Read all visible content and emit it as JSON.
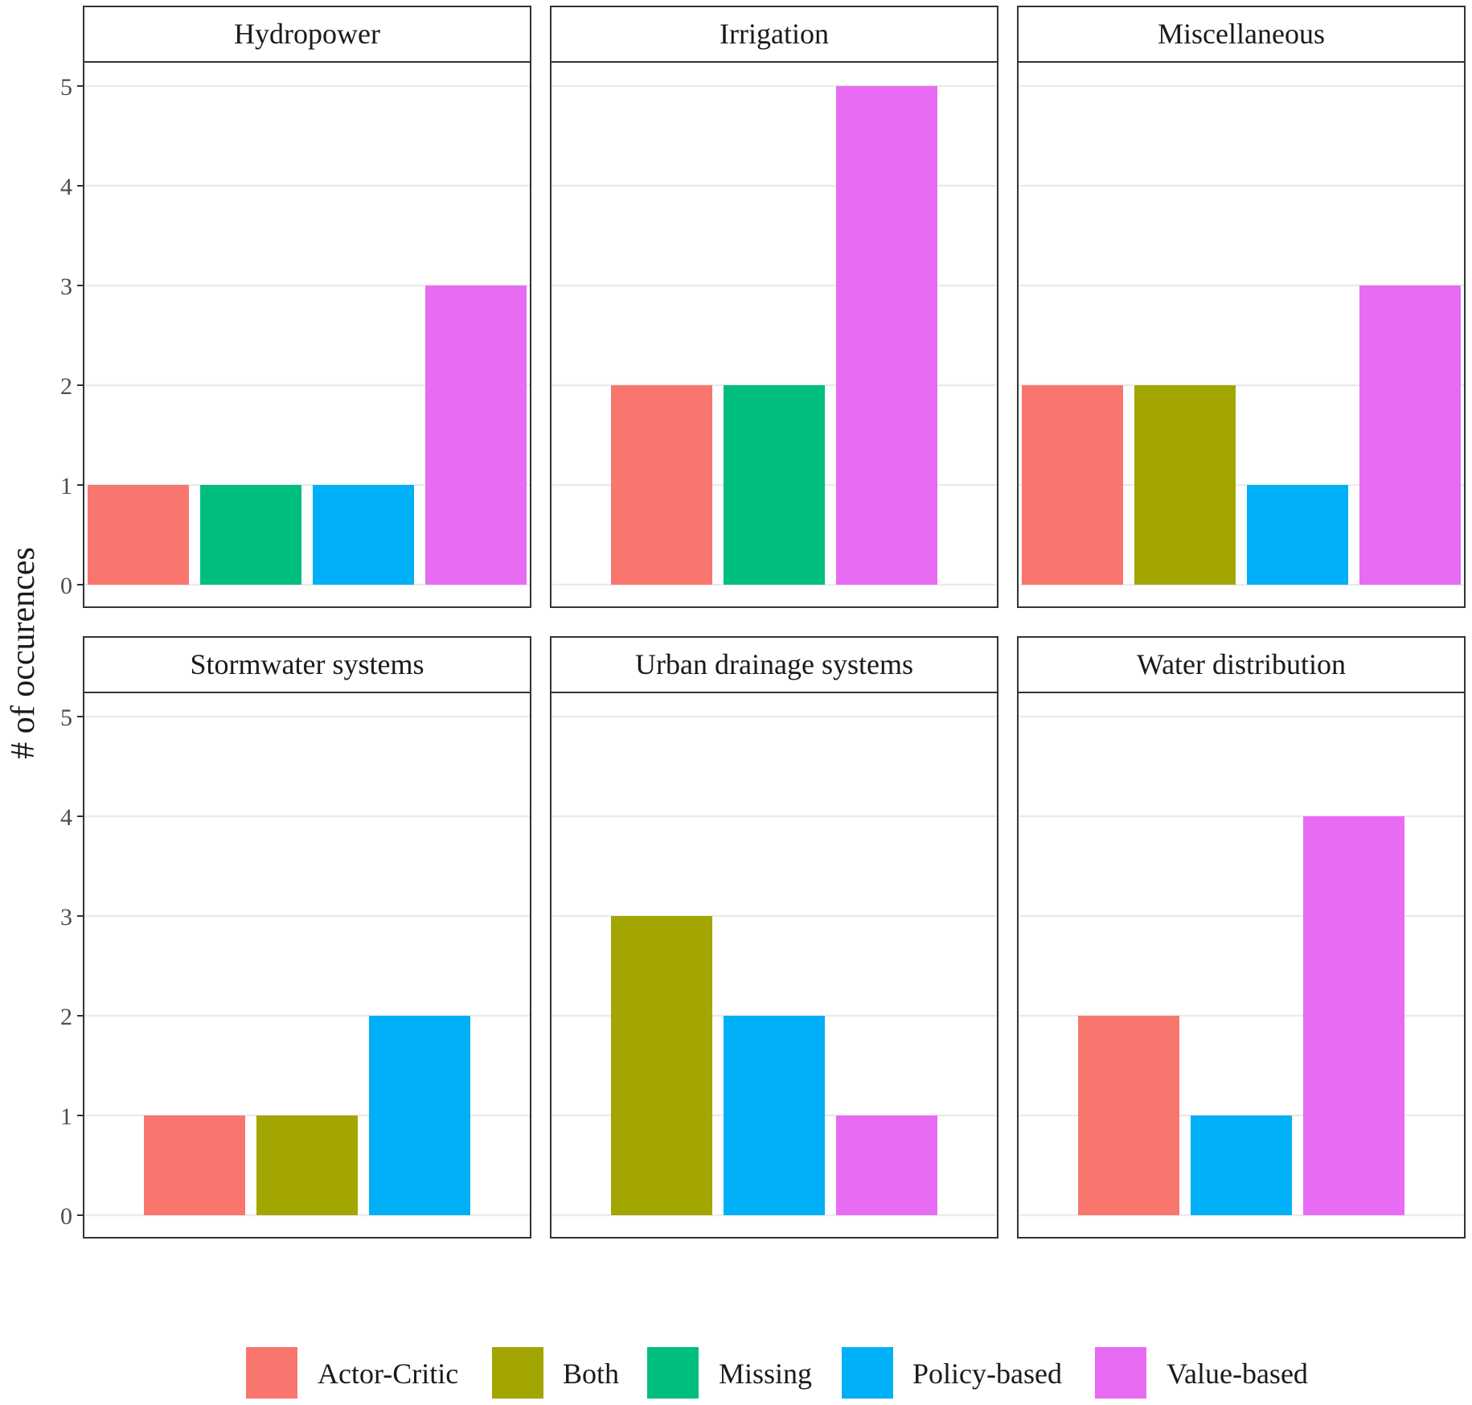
{
  "chart_data": {
    "type": "bar",
    "layout": "facet-grid-2x3",
    "ylabel": "# of occurences",
    "xlabel": "",
    "ylim": [
      0,
      5
    ],
    "y_ticks": [
      0,
      1,
      2,
      3,
      4,
      5
    ],
    "grid": true,
    "legend_position": "bottom",
    "categories": [
      "Actor-Critic",
      "Both",
      "Missing",
      "Policy-based",
      "Value-based"
    ],
    "colors": {
      "Actor-Critic": "#F8766D",
      "Both": "#A3A500",
      "Missing": "#00BF7D",
      "Policy-based": "#00B0F6",
      "Value-based": "#E76BF3"
    },
    "panels": [
      {
        "title": "Hydropower",
        "bars": [
          {
            "category": "Actor-Critic",
            "value": 1
          },
          {
            "category": "Missing",
            "value": 1
          },
          {
            "category": "Policy-based",
            "value": 1
          },
          {
            "category": "Value-based",
            "value": 3
          }
        ]
      },
      {
        "title": "Irrigation",
        "bars": [
          {
            "category": "Actor-Critic",
            "value": 2
          },
          {
            "category": "Missing",
            "value": 2
          },
          {
            "category": "Value-based",
            "value": 5
          }
        ]
      },
      {
        "title": "Miscellaneous",
        "bars": [
          {
            "category": "Actor-Critic",
            "value": 2
          },
          {
            "category": "Both",
            "value": 2
          },
          {
            "category": "Policy-based",
            "value": 1
          },
          {
            "category": "Value-based",
            "value": 3
          }
        ]
      },
      {
        "title": "Stormwater systems",
        "bars": [
          {
            "category": "Actor-Critic",
            "value": 1
          },
          {
            "category": "Both",
            "value": 1
          },
          {
            "category": "Policy-based",
            "value": 2
          }
        ]
      },
      {
        "title": "Urban drainage systems",
        "bars": [
          {
            "category": "Both",
            "value": 3
          },
          {
            "category": "Policy-based",
            "value": 2
          },
          {
            "category": "Value-based",
            "value": 1
          }
        ]
      },
      {
        "title": "Water distribution",
        "bars": [
          {
            "category": "Actor-Critic",
            "value": 2
          },
          {
            "category": "Policy-based",
            "value": 1
          },
          {
            "category": "Value-based",
            "value": 4
          }
        ]
      }
    ],
    "legend": [
      {
        "label": "Actor-Critic"
      },
      {
        "label": "Both"
      },
      {
        "label": "Missing"
      },
      {
        "label": "Policy-based"
      },
      {
        "label": "Value-based"
      }
    ]
  }
}
